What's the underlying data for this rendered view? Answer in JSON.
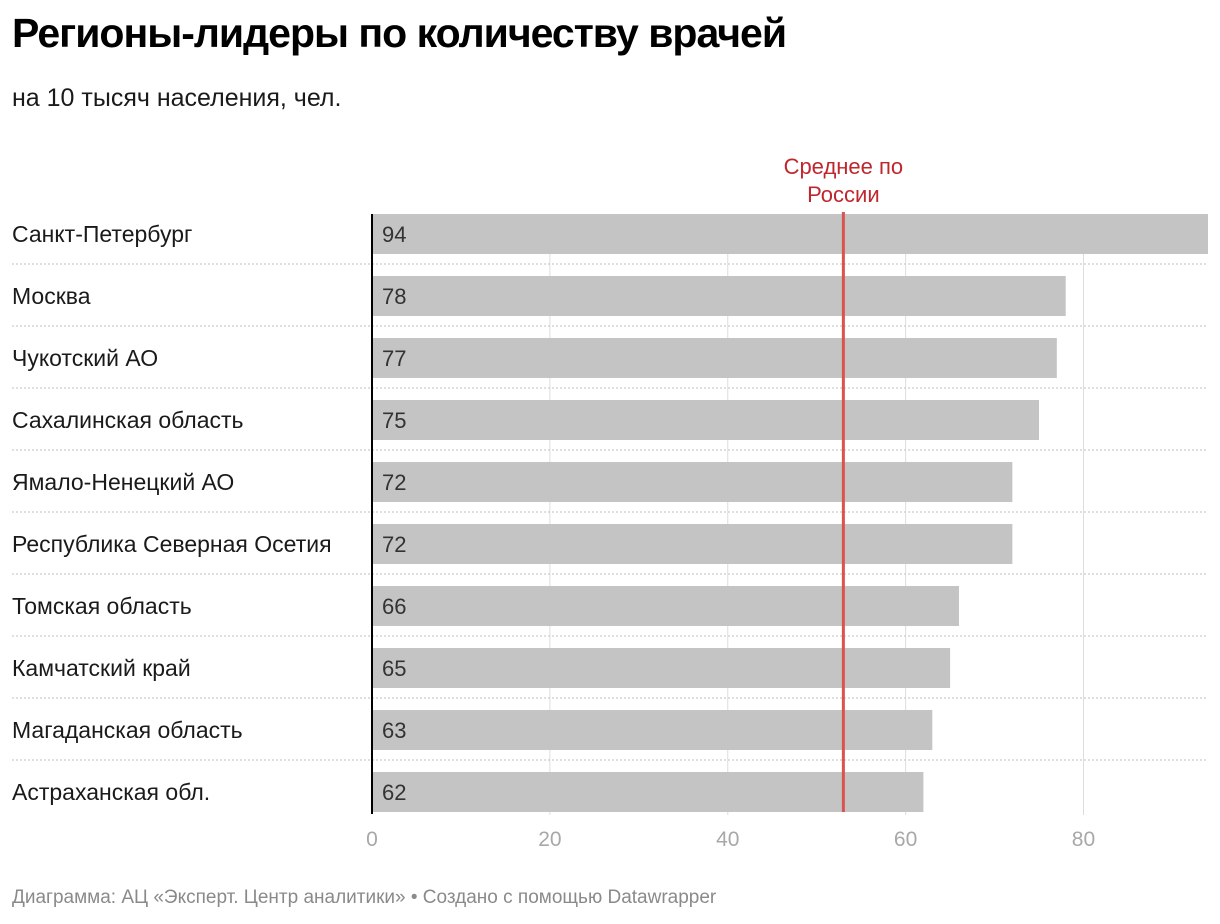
{
  "header": {
    "title": "Регионы-лидеры по количеству врачей",
    "subtitle": "на 10 тысяч населения, чел."
  },
  "footer": {
    "source_text": "Диаграмма: АЦ «Эксперт. Центр аналитики» • Создано с помощью Datawrapper"
  },
  "colors": {
    "bar": "#c4c4c4",
    "average_line": "#d9534f",
    "average_label": "#c0262d",
    "grid": "#dddddd",
    "axis": "#000000",
    "tick_label": "#a8a8a8",
    "row_separator": "#cccccc"
  },
  "chart_data": {
    "type": "bar",
    "orientation": "horizontal",
    "title": "Регионы-лидеры по количеству врачей",
    "subtitle": "на 10 тысяч населения, чел.",
    "categories": [
      "Санкт-Петербург",
      "Москва",
      "Чукотский АО",
      "Сахалинская область",
      "Ямало-Ненецкий АО",
      "Республика Северная Осетия",
      "Томская область",
      "Камчатский край",
      "Магаданская область",
      "Астраханская обл."
    ],
    "values": [
      94,
      78,
      77,
      75,
      72,
      72,
      66,
      65,
      63,
      62
    ],
    "xlim": [
      0,
      94
    ],
    "xticks": [
      0,
      20,
      40,
      60,
      80
    ],
    "grid": true,
    "reference_line": {
      "label": "Среднее по России",
      "label_lines": [
        "Среднее по",
        "России"
      ],
      "value": 53
    }
  }
}
